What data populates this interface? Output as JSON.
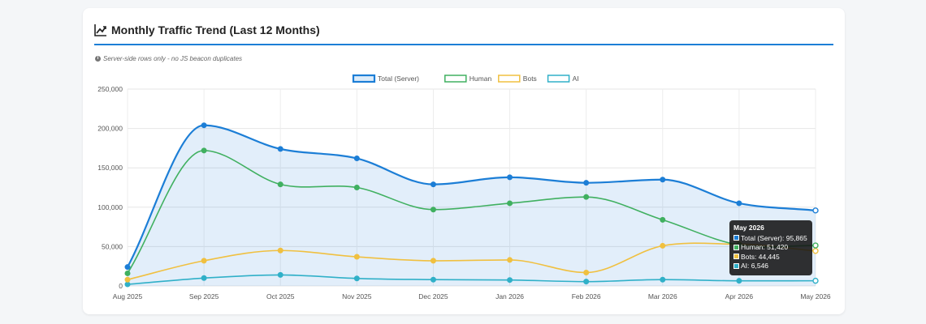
{
  "card": {
    "title": "Monthly Traffic Trend (Last 12 Months)",
    "title_icon": "line-chart-icon",
    "note": "Server-side rows only - no JS beacon duplicates",
    "note_icon": "info-icon"
  },
  "chart_data": {
    "type": "line",
    "title": "",
    "xlabel": "",
    "ylabel": "",
    "x": [
      "Aug 2025",
      "Sep 2025",
      "Oct 2025",
      "Nov 2025",
      "Dec 2025",
      "Jan 2026",
      "Feb 2026",
      "Mar 2026",
      "Apr 2026",
      "May 2026"
    ],
    "ylim": [
      0,
      250000
    ],
    "yticks": [
      "0",
      "50,000",
      "100,000",
      "150,000",
      "200,000",
      "250,000"
    ],
    "grid": true,
    "legend_position": "top-center",
    "series": [
      {
        "name": "Total (Server)",
        "color": "#1c7ed6",
        "fill": true,
        "values": [
          24000,
          204000,
          174000,
          162000,
          129000,
          138000,
          131000,
          135000,
          105000,
          95865
        ]
      },
      {
        "name": "Human",
        "color": "#40b060",
        "fill": false,
        "values": [
          16000,
          172000,
          129000,
          125000,
          97000,
          105000,
          113000,
          84000,
          52000,
          51420
        ]
      },
      {
        "name": "Bots",
        "color": "#f0c040",
        "fill": false,
        "values": [
          8000,
          32000,
          45000,
          37000,
          32000,
          33000,
          17000,
          51000,
          53000,
          44445
        ]
      },
      {
        "name": "AI",
        "color": "#30b0c8",
        "fill": false,
        "values": [
          2000,
          10000,
          14000,
          9500,
          8000,
          7500,
          5500,
          8000,
          6500,
          6546
        ]
      }
    ],
    "tooltip": {
      "title": "May 2026",
      "rows": [
        "Total (Server): 95,865",
        "Human: 51,420",
        "Bots: 44,445",
        "AI: 6,546"
      ]
    }
  }
}
